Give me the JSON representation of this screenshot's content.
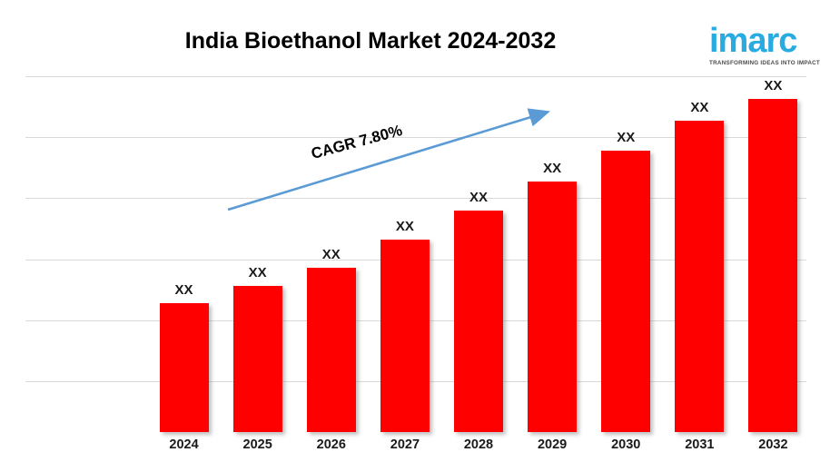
{
  "logo": {
    "brand": "imarc",
    "tagline": "TRANSFORMING IDEAS INTO IMPACT",
    "brand_color": "#29ABE2"
  },
  "chart_data": {
    "type": "bar",
    "title": "India Bioethanol Market 2024-2032",
    "categories": [
      "2024",
      "2025",
      "2026",
      "2027",
      "2028",
      "2029",
      "2030",
      "2031",
      "2032"
    ],
    "values": [
      "XX",
      "XX",
      "XX",
      "XX",
      "XX",
      "XX",
      "XX",
      "XX",
      "XX"
    ],
    "relative_heights_pct": [
      36.2,
      41.1,
      46.2,
      54.1,
      62.2,
      70.4,
      79.1,
      87.5,
      93.6
    ],
    "bar_color": "#FF0000",
    "gridline_color": "#D9D9D9",
    "grid": true,
    "xlabel": "",
    "ylabel": "",
    "y_axis_labels_visible": false,
    "legend": "none",
    "annotation": {
      "label": "CAGR 7.80%",
      "arrow_color": "#5B9BD5"
    }
  }
}
